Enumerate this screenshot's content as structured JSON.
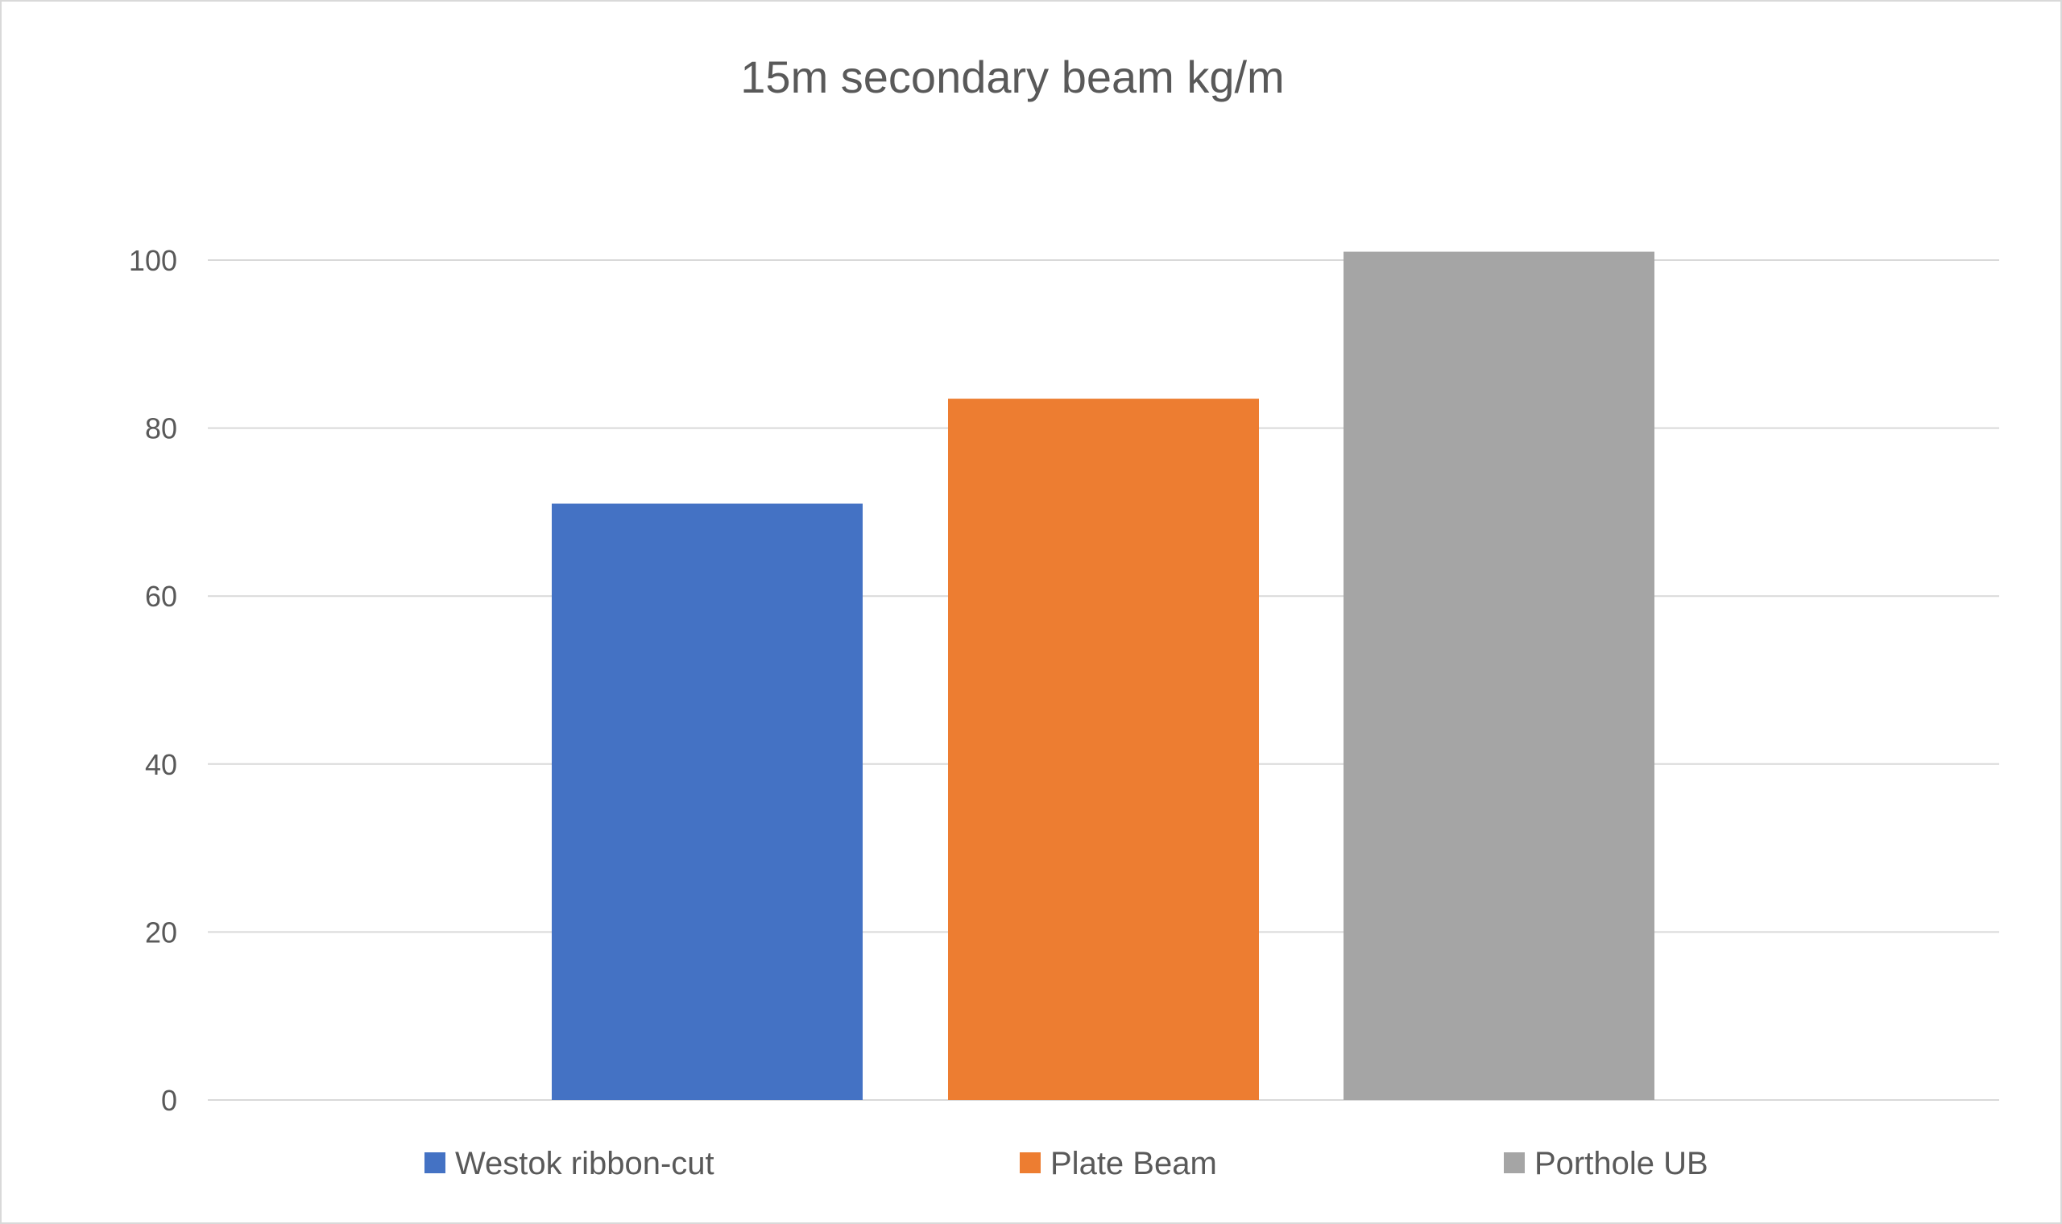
{
  "chart_data": {
    "type": "bar",
    "title": "15m secondary beam kg/m",
    "xlabel": "",
    "ylabel": "",
    "ylim": [
      0,
      100
    ],
    "yticks": [
      "0",
      "20",
      "40",
      "60",
      "80",
      "100"
    ],
    "grid": true,
    "legend_position": "bottom",
    "series": [
      {
        "name": "Westok ribbon-cut",
        "values": [
          71
        ],
        "color": "#4472c4"
      },
      {
        "name": "Plate Beam",
        "values": [
          83.5
        ],
        "color": "#ed7d31"
      },
      {
        "name": "Porthole UB",
        "values": [
          101
        ],
        "color": "#a5a5a5"
      }
    ]
  }
}
